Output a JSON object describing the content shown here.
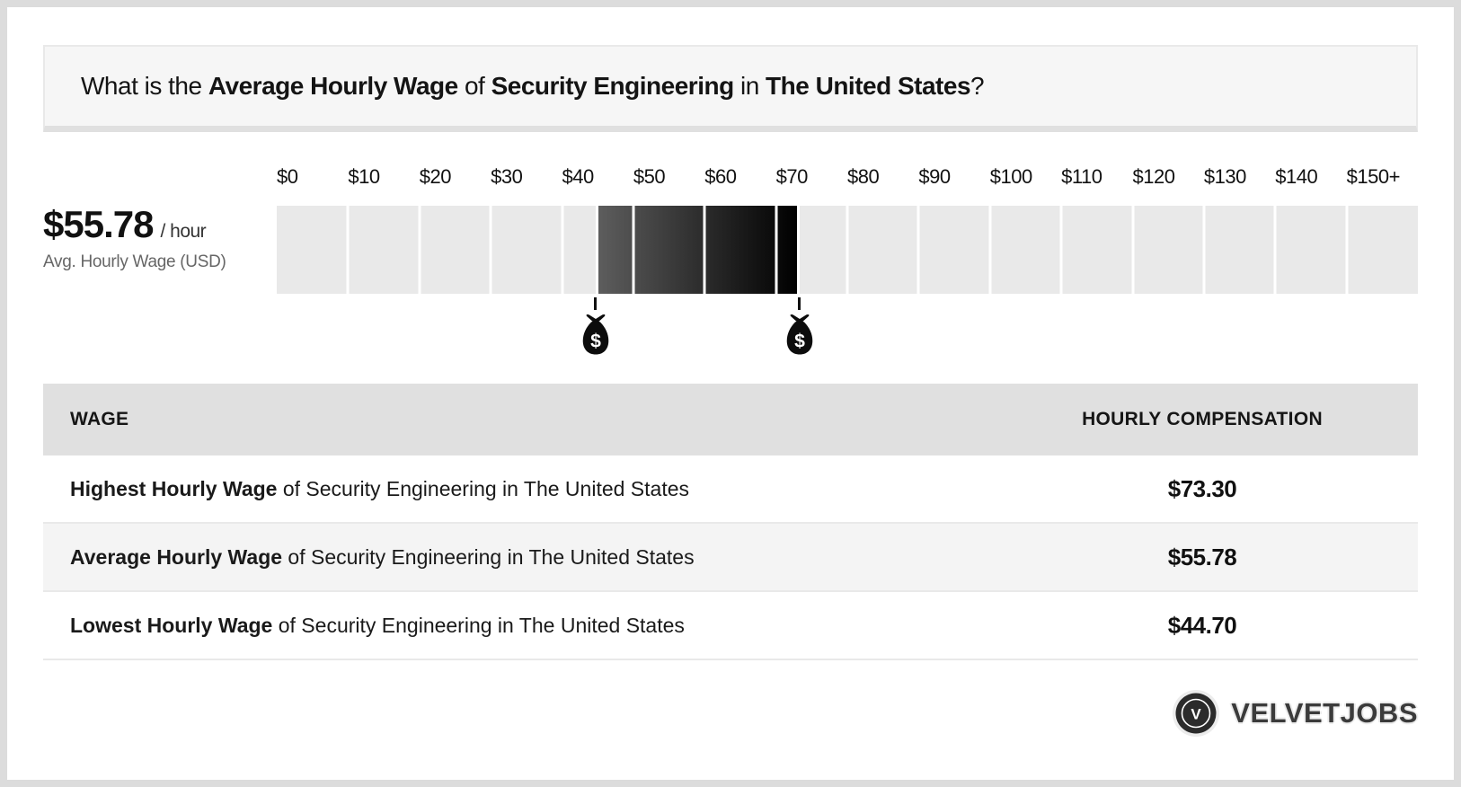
{
  "title": {
    "parts": [
      {
        "text": "What is the ",
        "bold": false
      },
      {
        "text": "Average Hourly Wage",
        "bold": true
      },
      {
        "text": " of ",
        "bold": false
      },
      {
        "text": "Security Engineering",
        "bold": true
      },
      {
        "text": " in ",
        "bold": false
      },
      {
        "text": "The United States",
        "bold": true
      },
      {
        "text": "?",
        "bold": false
      }
    ]
  },
  "wage_panel": {
    "amount": "$55.78",
    "per": "/ hour",
    "caption": "Avg. Hourly Wage (USD)"
  },
  "chart_data": {
    "type": "range-scale",
    "title": "What is the Average Hourly Wage of Security Engineering in The United States?",
    "axis_ticks": [
      "$0",
      "$10",
      "$20",
      "$30",
      "$40",
      "$50",
      "$60",
      "$70",
      "$80",
      "$90",
      "$100",
      "$110",
      "$120",
      "$130",
      "$140",
      "$150+"
    ],
    "axis_min": 0,
    "axis_max": 160,
    "segment_size": 10,
    "highlight_range": {
      "low": 44.7,
      "high": 73.3
    },
    "average": 55.78,
    "marker_values": [
      44.7,
      73.3
    ],
    "marker_icon": "money-bag",
    "colors": {
      "base_segment": "#e9e9e9",
      "gradient_start": "#5d5d5d",
      "gradient_end": "#000000",
      "gap": "#ffffff"
    }
  },
  "table": {
    "headers": [
      "WAGE",
      "HOURLY COMPENSATION"
    ],
    "rows": [
      {
        "label_bold": "Highest Hourly Wage",
        "label_rest": " of Security Engineering in The United States",
        "value": "$73.30"
      },
      {
        "label_bold": "Average Hourly Wage",
        "label_rest": " of Security Engineering in The United States",
        "value": "$55.78"
      },
      {
        "label_bold": "Lowest Hourly Wage",
        "label_rest": " of Security Engineering in The United States",
        "value": "$44.70"
      }
    ]
  },
  "footer": {
    "brand": "VELVETJOBS",
    "logo_letter": "V"
  }
}
